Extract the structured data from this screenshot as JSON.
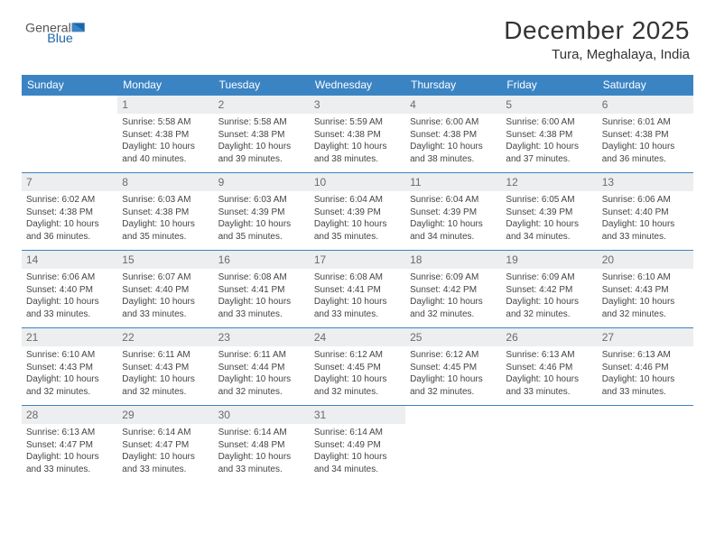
{
  "brand": {
    "word1": "General",
    "word2": "Blue"
  },
  "title": "December 2025",
  "location": "Tura, Meghalaya, India",
  "header_bg": "#3b84c4",
  "daynum_bg": "#eceeef",
  "border_color": "#3b84c4",
  "text_color": "#444444",
  "weekdays": [
    "Sunday",
    "Monday",
    "Tuesday",
    "Wednesday",
    "Thursday",
    "Friday",
    "Saturday"
  ],
  "weeks": [
    [
      {
        "n": "",
        "lines": [
          "",
          "",
          "",
          ""
        ]
      },
      {
        "n": "1",
        "lines": [
          "Sunrise: 5:58 AM",
          "Sunset: 4:38 PM",
          "Daylight: 10 hours",
          "and 40 minutes."
        ]
      },
      {
        "n": "2",
        "lines": [
          "Sunrise: 5:58 AM",
          "Sunset: 4:38 PM",
          "Daylight: 10 hours",
          "and 39 minutes."
        ]
      },
      {
        "n": "3",
        "lines": [
          "Sunrise: 5:59 AM",
          "Sunset: 4:38 PM",
          "Daylight: 10 hours",
          "and 38 minutes."
        ]
      },
      {
        "n": "4",
        "lines": [
          "Sunrise: 6:00 AM",
          "Sunset: 4:38 PM",
          "Daylight: 10 hours",
          "and 38 minutes."
        ]
      },
      {
        "n": "5",
        "lines": [
          "Sunrise: 6:00 AM",
          "Sunset: 4:38 PM",
          "Daylight: 10 hours",
          "and 37 minutes."
        ]
      },
      {
        "n": "6",
        "lines": [
          "Sunrise: 6:01 AM",
          "Sunset: 4:38 PM",
          "Daylight: 10 hours",
          "and 36 minutes."
        ]
      }
    ],
    [
      {
        "n": "7",
        "lines": [
          "Sunrise: 6:02 AM",
          "Sunset: 4:38 PM",
          "Daylight: 10 hours",
          "and 36 minutes."
        ]
      },
      {
        "n": "8",
        "lines": [
          "Sunrise: 6:03 AM",
          "Sunset: 4:38 PM",
          "Daylight: 10 hours",
          "and 35 minutes."
        ]
      },
      {
        "n": "9",
        "lines": [
          "Sunrise: 6:03 AM",
          "Sunset: 4:39 PM",
          "Daylight: 10 hours",
          "and 35 minutes."
        ]
      },
      {
        "n": "10",
        "lines": [
          "Sunrise: 6:04 AM",
          "Sunset: 4:39 PM",
          "Daylight: 10 hours",
          "and 35 minutes."
        ]
      },
      {
        "n": "11",
        "lines": [
          "Sunrise: 6:04 AM",
          "Sunset: 4:39 PM",
          "Daylight: 10 hours",
          "and 34 minutes."
        ]
      },
      {
        "n": "12",
        "lines": [
          "Sunrise: 6:05 AM",
          "Sunset: 4:39 PM",
          "Daylight: 10 hours",
          "and 34 minutes."
        ]
      },
      {
        "n": "13",
        "lines": [
          "Sunrise: 6:06 AM",
          "Sunset: 4:40 PM",
          "Daylight: 10 hours",
          "and 33 minutes."
        ]
      }
    ],
    [
      {
        "n": "14",
        "lines": [
          "Sunrise: 6:06 AM",
          "Sunset: 4:40 PM",
          "Daylight: 10 hours",
          "and 33 minutes."
        ]
      },
      {
        "n": "15",
        "lines": [
          "Sunrise: 6:07 AM",
          "Sunset: 4:40 PM",
          "Daylight: 10 hours",
          "and 33 minutes."
        ]
      },
      {
        "n": "16",
        "lines": [
          "Sunrise: 6:08 AM",
          "Sunset: 4:41 PM",
          "Daylight: 10 hours",
          "and 33 minutes."
        ]
      },
      {
        "n": "17",
        "lines": [
          "Sunrise: 6:08 AM",
          "Sunset: 4:41 PM",
          "Daylight: 10 hours",
          "and 33 minutes."
        ]
      },
      {
        "n": "18",
        "lines": [
          "Sunrise: 6:09 AM",
          "Sunset: 4:42 PM",
          "Daylight: 10 hours",
          "and 32 minutes."
        ]
      },
      {
        "n": "19",
        "lines": [
          "Sunrise: 6:09 AM",
          "Sunset: 4:42 PM",
          "Daylight: 10 hours",
          "and 32 minutes."
        ]
      },
      {
        "n": "20",
        "lines": [
          "Sunrise: 6:10 AM",
          "Sunset: 4:43 PM",
          "Daylight: 10 hours",
          "and 32 minutes."
        ]
      }
    ],
    [
      {
        "n": "21",
        "lines": [
          "Sunrise: 6:10 AM",
          "Sunset: 4:43 PM",
          "Daylight: 10 hours",
          "and 32 minutes."
        ]
      },
      {
        "n": "22",
        "lines": [
          "Sunrise: 6:11 AM",
          "Sunset: 4:43 PM",
          "Daylight: 10 hours",
          "and 32 minutes."
        ]
      },
      {
        "n": "23",
        "lines": [
          "Sunrise: 6:11 AM",
          "Sunset: 4:44 PM",
          "Daylight: 10 hours",
          "and 32 minutes."
        ]
      },
      {
        "n": "24",
        "lines": [
          "Sunrise: 6:12 AM",
          "Sunset: 4:45 PM",
          "Daylight: 10 hours",
          "and 32 minutes."
        ]
      },
      {
        "n": "25",
        "lines": [
          "Sunrise: 6:12 AM",
          "Sunset: 4:45 PM",
          "Daylight: 10 hours",
          "and 32 minutes."
        ]
      },
      {
        "n": "26",
        "lines": [
          "Sunrise: 6:13 AM",
          "Sunset: 4:46 PM",
          "Daylight: 10 hours",
          "and 33 minutes."
        ]
      },
      {
        "n": "27",
        "lines": [
          "Sunrise: 6:13 AM",
          "Sunset: 4:46 PM",
          "Daylight: 10 hours",
          "and 33 minutes."
        ]
      }
    ],
    [
      {
        "n": "28",
        "lines": [
          "Sunrise: 6:13 AM",
          "Sunset: 4:47 PM",
          "Daylight: 10 hours",
          "and 33 minutes."
        ]
      },
      {
        "n": "29",
        "lines": [
          "Sunrise: 6:14 AM",
          "Sunset: 4:47 PM",
          "Daylight: 10 hours",
          "and 33 minutes."
        ]
      },
      {
        "n": "30",
        "lines": [
          "Sunrise: 6:14 AM",
          "Sunset: 4:48 PM",
          "Daylight: 10 hours",
          "and 33 minutes."
        ]
      },
      {
        "n": "31",
        "lines": [
          "Sunrise: 6:14 AM",
          "Sunset: 4:49 PM",
          "Daylight: 10 hours",
          "and 34 minutes."
        ]
      },
      {
        "n": "",
        "lines": [
          "",
          "",
          "",
          ""
        ]
      },
      {
        "n": "",
        "lines": [
          "",
          "",
          "",
          ""
        ]
      },
      {
        "n": "",
        "lines": [
          "",
          "",
          "",
          ""
        ]
      }
    ]
  ]
}
